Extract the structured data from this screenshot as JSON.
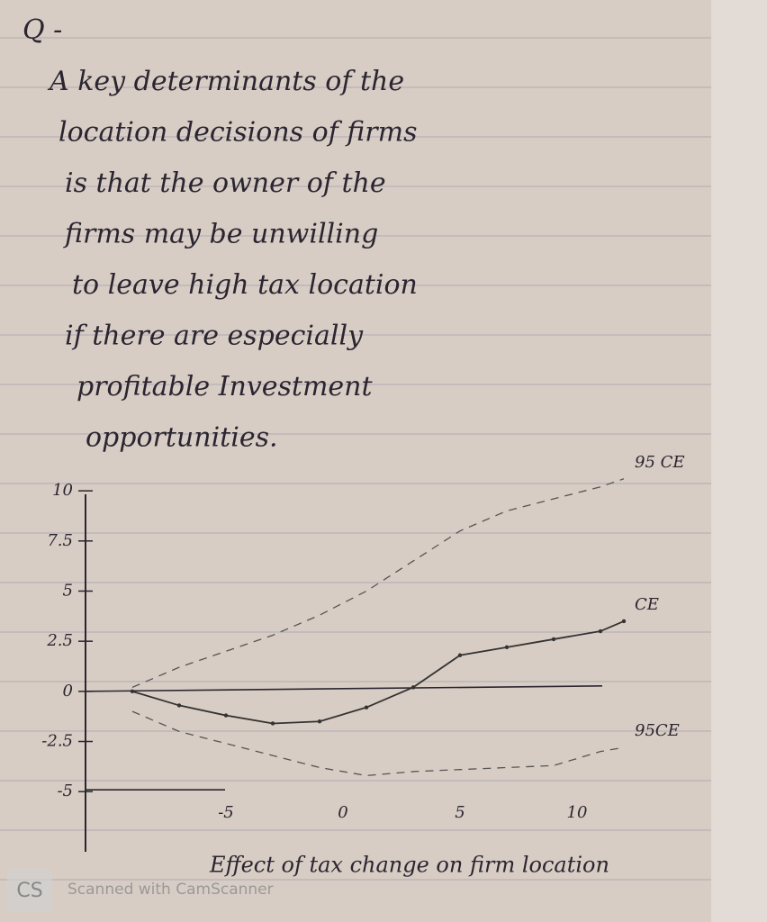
{
  "notes": {
    "heading": "Q -",
    "lines": [
      "A key determinants of the",
      "location decisions of firms",
      "is that the owner of the",
      "firms may be unwilling",
      "to leave high tax location",
      "if there are especially",
      "profitable Investment",
      "opportunities."
    ]
  },
  "watermark": {
    "logo": "CS",
    "text": "Scanned with CamScanner"
  },
  "chart_data": {
    "type": "line",
    "title": "Effect of tax change on firm location",
    "x": [
      -9,
      -7,
      -5,
      -3,
      -1,
      1,
      3,
      5,
      7,
      9,
      11,
      12
    ],
    "series": [
      {
        "name": "95 CE",
        "color": "#555",
        "dashed": true,
        "values": [
          0.2,
          1.2,
          2,
          2.8,
          3.8,
          5,
          6.5,
          8,
          9,
          9.6,
          10.2,
          10.6
        ]
      },
      {
        "name": "CE",
        "color": "#333",
        "dashed": false,
        "values": [
          0,
          -0.7,
          -1.2,
          -1.6,
          -1.5,
          -0.8,
          0.2,
          1.8,
          2.2,
          2.6,
          3,
          3.5
        ]
      },
      {
        "name": "95CE",
        "color": "#555",
        "dashed": true,
        "values": [
          -1,
          -2,
          -2.6,
          -3.2,
          -3.8,
          -4.2,
          -4,
          -3.9,
          -3.8,
          -3.7,
          -3,
          -2.8
        ]
      }
    ],
    "xlim": [
      -11,
      13
    ],
    "ylim": [
      -8,
      10.5
    ],
    "xticks": [
      -5,
      0,
      5,
      10
    ],
    "yticks": [
      10,
      7.5,
      5,
      2.5,
      0,
      -2.5,
      -5
    ]
  }
}
